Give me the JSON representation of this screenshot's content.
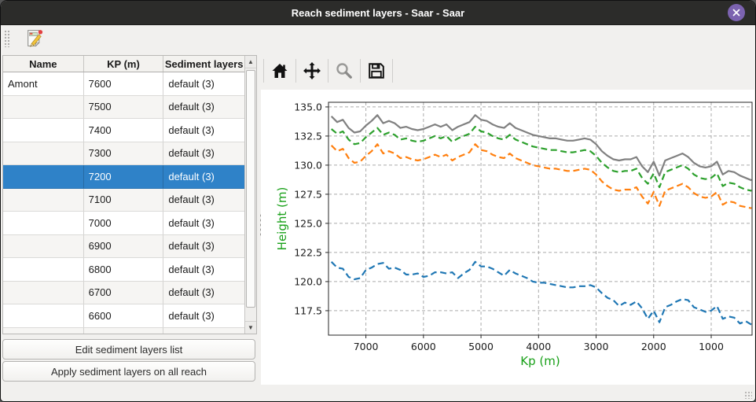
{
  "window": {
    "title": "Reach sediment layers - Saar - Saar",
    "titlebar_color": "#2c2c2a",
    "close_button_color": "#7c63b0"
  },
  "app_toolbar": {
    "edit_icon": "edit-note-pencil-icon"
  },
  "left_panel": {
    "table": {
      "columns": [
        "Name",
        "KP (m)",
        "Sediment layers"
      ],
      "rows": [
        {
          "name": "Amont",
          "kp": "7600",
          "layers": "default (3)"
        },
        {
          "name": "",
          "kp": "7500",
          "layers": "default (3)"
        },
        {
          "name": "",
          "kp": "7400",
          "layers": "default (3)"
        },
        {
          "name": "",
          "kp": "7300",
          "layers": "default (3)"
        },
        {
          "name": "",
          "kp": "7200",
          "layers": "default (3)"
        },
        {
          "name": "",
          "kp": "7100",
          "layers": "default (3)"
        },
        {
          "name": "",
          "kp": "7000",
          "layers": "default (3)"
        },
        {
          "name": "",
          "kp": "6900",
          "layers": "default (3)"
        },
        {
          "name": "",
          "kp": "6800",
          "layers": "default (3)"
        },
        {
          "name": "",
          "kp": "6700",
          "layers": "default (3)"
        },
        {
          "name": "",
          "kp": "6600",
          "layers": "default (3)"
        }
      ],
      "selected_row_index": 4,
      "selection_color": "#2f82c8"
    },
    "buttons": [
      {
        "label": "Edit sediment layers list"
      },
      {
        "label": "Apply sediment layers on all reach"
      }
    ]
  },
  "plot_toolbar": {
    "icons": [
      {
        "name": "home-icon",
        "disabled": false
      },
      {
        "name": "pan-icon",
        "disabled": false
      },
      {
        "name": "zoom-icon",
        "disabled": true
      },
      {
        "name": "save-icon",
        "disabled": false
      }
    ]
  },
  "chart_data": {
    "type": "line",
    "title": "",
    "xlabel": "Kp (m)",
    "ylabel": "Height (m)",
    "axis_label_color": "#18a018",
    "x_inverted": true,
    "grid": true,
    "legend": false,
    "xlim": [
      7650,
      290
    ],
    "ylim": [
      115.4,
      135.4
    ],
    "xticks": [
      7000,
      6000,
      5000,
      4000,
      3000,
      2000,
      1000
    ],
    "yticks": [
      135.0,
      132.5,
      130.0,
      127.5,
      125.0,
      122.5,
      120.0,
      117.5
    ],
    "x": [
      7600,
      7500,
      7400,
      7300,
      7200,
      7100,
      7000,
      6900,
      6800,
      6700,
      6600,
      6500,
      6400,
      6300,
      6200,
      6100,
      6000,
      5900,
      5800,
      5700,
      5600,
      5500,
      5400,
      5300,
      5200,
      5100,
      5000,
      4900,
      4800,
      4700,
      4600,
      4500,
      4400,
      4300,
      4200,
      4100,
      4000,
      3900,
      3800,
      3700,
      3600,
      3500,
      3400,
      3300,
      3200,
      3100,
      3000,
      2900,
      2800,
      2700,
      2600,
      2500,
      2400,
      2300,
      2200,
      2100,
      2000,
      1900,
      1800,
      1700,
      1600,
      1500,
      1400,
      1300,
      1200,
      1100,
      1000,
      900,
      800,
      700,
      600,
      500,
      400,
      300
    ],
    "series": [
      {
        "name": "sediment-layer-top-grey",
        "color": "#808080",
        "style": "solid",
        "values": [
          134.2,
          133.7,
          133.9,
          133.2,
          132.8,
          132.9,
          133.4,
          133.8,
          134.3,
          133.6,
          133.8,
          133.6,
          133.2,
          133.3,
          133.1,
          133.0,
          133.1,
          133.3,
          133.5,
          133.3,
          133.5,
          133.0,
          133.3,
          133.5,
          133.7,
          134.3,
          133.9,
          133.8,
          133.5,
          133.3,
          133.2,
          133.6,
          133.2,
          133.0,
          132.8,
          132.6,
          132.5,
          132.4,
          132.3,
          132.3,
          132.2,
          132.1,
          132.1,
          132.2,
          132.3,
          132.2,
          131.8,
          131.2,
          130.8,
          130.5,
          130.4,
          130.5,
          130.5,
          130.7,
          129.9,
          129.4,
          130.3,
          129.1,
          130.4,
          130.6,
          130.8,
          131.0,
          130.7,
          130.2,
          129.9,
          129.8,
          129.9,
          130.3,
          129.2,
          129.5,
          129.4,
          129.1,
          128.9,
          128.7
        ]
      },
      {
        "name": "sediment-layer-2-green",
        "color": "#2ca02c",
        "style": "dashed",
        "values": [
          133.1,
          132.7,
          132.9,
          132.2,
          131.8,
          131.9,
          132.4,
          132.8,
          133.2,
          132.6,
          132.8,
          132.6,
          132.2,
          132.3,
          132.1,
          132.0,
          132.1,
          132.3,
          132.5,
          132.3,
          132.5,
          132.0,
          132.3,
          132.5,
          132.7,
          133.3,
          132.9,
          132.8,
          132.5,
          132.3,
          132.2,
          132.6,
          132.2,
          132.0,
          131.8,
          131.6,
          131.5,
          131.4,
          131.3,
          131.3,
          131.2,
          131.1,
          131.1,
          131.2,
          131.3,
          131.2,
          130.8,
          130.2,
          129.8,
          129.5,
          129.4,
          129.5,
          129.5,
          129.7,
          128.9,
          128.4,
          129.3,
          128.1,
          129.4,
          129.6,
          129.8,
          130.0,
          129.7,
          129.2,
          128.9,
          128.8,
          128.9,
          129.3,
          128.2,
          128.5,
          128.4,
          128.1,
          127.9,
          127.8
        ]
      },
      {
        "name": "sediment-layer-3-orange",
        "color": "#ff7f0e",
        "style": "dashed",
        "values": [
          131.7,
          131.2,
          131.4,
          130.6,
          130.2,
          130.3,
          130.8,
          131.2,
          131.8,
          131.0,
          131.2,
          131.0,
          130.6,
          130.7,
          130.5,
          130.4,
          130.5,
          130.7,
          130.9,
          130.7,
          130.9,
          130.4,
          130.7,
          130.9,
          131.1,
          131.8,
          131.3,
          131.2,
          130.9,
          130.7,
          130.6,
          131.0,
          130.6,
          130.4,
          130.2,
          130.0,
          129.9,
          129.8,
          129.7,
          129.7,
          129.6,
          129.5,
          129.5,
          129.6,
          129.7,
          129.6,
          129.2,
          128.6,
          128.2,
          127.9,
          127.8,
          127.9,
          127.9,
          128.1,
          127.3,
          126.7,
          127.7,
          126.5,
          127.8,
          128.0,
          128.2,
          128.4,
          128.1,
          127.6,
          127.3,
          127.2,
          127.3,
          127.7,
          126.6,
          126.9,
          126.8,
          126.5,
          126.4,
          126.3
        ]
      },
      {
        "name": "channel-bottom-blue",
        "color": "#1f77b4",
        "style": "dashed",
        "values": [
          121.7,
          121.2,
          121.1,
          120.4,
          120.2,
          120.3,
          121.0,
          121.2,
          121.5,
          121.6,
          121.1,
          121.2,
          121.0,
          120.6,
          120.6,
          120.7,
          120.4,
          120.5,
          120.8,
          120.8,
          120.7,
          120.8,
          120.3,
          120.7,
          121.0,
          121.7,
          121.3,
          121.3,
          121.1,
          120.8,
          120.5,
          121.0,
          120.7,
          120.5,
          120.3,
          120.0,
          119.9,
          119.9,
          119.8,
          119.7,
          119.6,
          119.5,
          119.5,
          119.6,
          119.6,
          119.7,
          119.5,
          119.0,
          118.6,
          118.4,
          117.9,
          118.2,
          118.0,
          118.3,
          117.7,
          116.8,
          117.5,
          116.5,
          117.8,
          118.0,
          118.3,
          118.5,
          118.4,
          117.8,
          117.6,
          117.4,
          117.5,
          117.9,
          116.8,
          117.0,
          116.9,
          116.4,
          116.6,
          116.3
        ]
      }
    ]
  }
}
